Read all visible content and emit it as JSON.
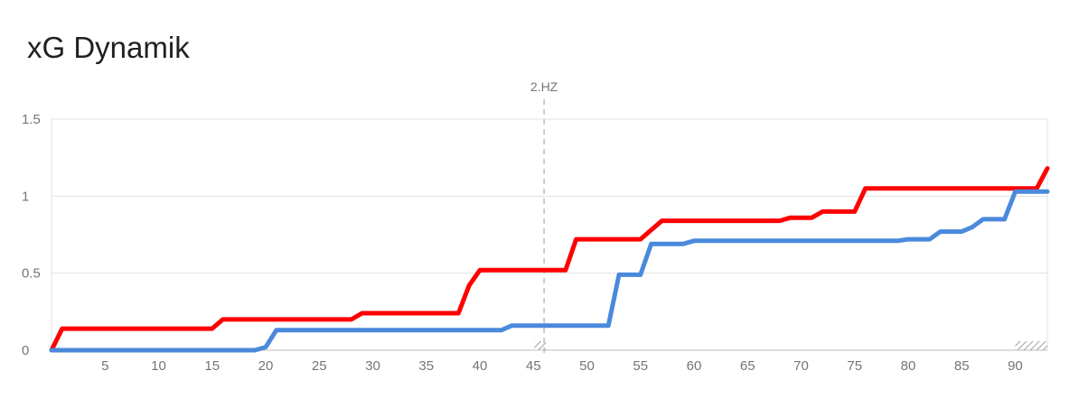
{
  "chart_data": {
    "type": "line",
    "title": "xG Dynamik",
    "xlabel": "",
    "ylabel": "",
    "xlim": [
      0,
      93
    ],
    "ylim": [
      0,
      1.5
    ],
    "x_ticks": [
      5,
      10,
      15,
      20,
      25,
      30,
      35,
      40,
      45,
      50,
      55,
      60,
      65,
      70,
      75,
      80,
      85,
      90
    ],
    "y_ticks": [
      {
        "value": 0,
        "label": "0"
      },
      {
        "value": 0.5,
        "label": "0.5"
      },
      {
        "value": 1,
        "label": "1"
      },
      {
        "value": 1.5,
        "label": "1.5"
      }
    ],
    "grid": true,
    "legend": "none",
    "markers": [
      {
        "x": 46,
        "label": "2.HZ"
      }
    ],
    "series": [
      {
        "color": "#ff0000",
        "points": [
          [
            0,
            0
          ],
          [
            1,
            0.14
          ],
          [
            15,
            0.14
          ],
          [
            16,
            0.2
          ],
          [
            28,
            0.2
          ],
          [
            29,
            0.24
          ],
          [
            38,
            0.24
          ],
          [
            39,
            0.42
          ],
          [
            40,
            0.52
          ],
          [
            48,
            0.52
          ],
          [
            49,
            0.72
          ],
          [
            55,
            0.72
          ],
          [
            57,
            0.84
          ],
          [
            68,
            0.84
          ],
          [
            69,
            0.86
          ],
          [
            71,
            0.86
          ],
          [
            72,
            0.9
          ],
          [
            75,
            0.9
          ],
          [
            76,
            1.05
          ],
          [
            92,
            1.05
          ],
          [
            93,
            1.18
          ]
        ]
      },
      {
        "color": "#4a89dc",
        "points": [
          [
            0,
            0
          ],
          [
            19,
            0
          ],
          [
            20,
            0.02
          ],
          [
            21,
            0.13
          ],
          [
            42,
            0.13
          ],
          [
            43,
            0.16
          ],
          [
            52,
            0.16
          ],
          [
            53,
            0.49
          ],
          [
            55,
            0.49
          ],
          [
            56,
            0.69
          ],
          [
            59,
            0.69
          ],
          [
            60,
            0.71
          ],
          [
            79,
            0.71
          ],
          [
            80,
            0.72
          ],
          [
            82,
            0.72
          ],
          [
            83,
            0.77
          ],
          [
            85,
            0.77
          ],
          [
            86,
            0.8
          ],
          [
            87,
            0.85
          ],
          [
            89,
            0.85
          ],
          [
            90,
            1.03
          ],
          [
            93,
            1.03
          ]
        ]
      }
    ]
  }
}
